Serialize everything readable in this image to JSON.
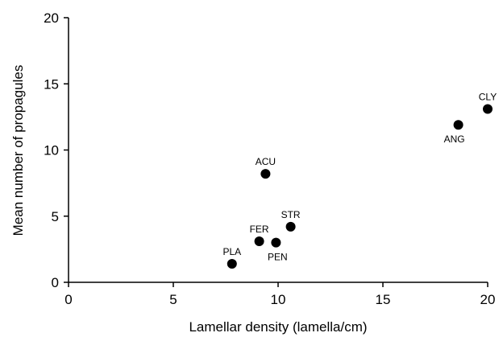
{
  "chart_data": {
    "type": "scatter",
    "xlabel": "Lamellar density (lamella/cm)",
    "ylabel": "Mean number of propagules",
    "xlim": [
      0,
      20
    ],
    "ylim": [
      0,
      20
    ],
    "xticks": [
      0,
      5,
      10,
      15,
      20
    ],
    "yticks": [
      0,
      5,
      10,
      15,
      20
    ],
    "grid": false,
    "legend": "none",
    "colors": {
      "points": "#000000",
      "axes": "#000000"
    },
    "points": [
      {
        "label": "PLA",
        "x": 7.8,
        "y": 1.4
      },
      {
        "label": "FER",
        "x": 9.1,
        "y": 3.1
      },
      {
        "label": "PEN",
        "x": 9.9,
        "y": 3.0
      },
      {
        "label": "STR",
        "x": 10.6,
        "y": 4.2
      },
      {
        "label": "ACU",
        "x": 9.4,
        "y": 8.2
      },
      {
        "label": "ANG",
        "x": 18.6,
        "y": 11.9
      },
      {
        "label": "CLY",
        "x": 20.0,
        "y": 13.1
      }
    ]
  }
}
